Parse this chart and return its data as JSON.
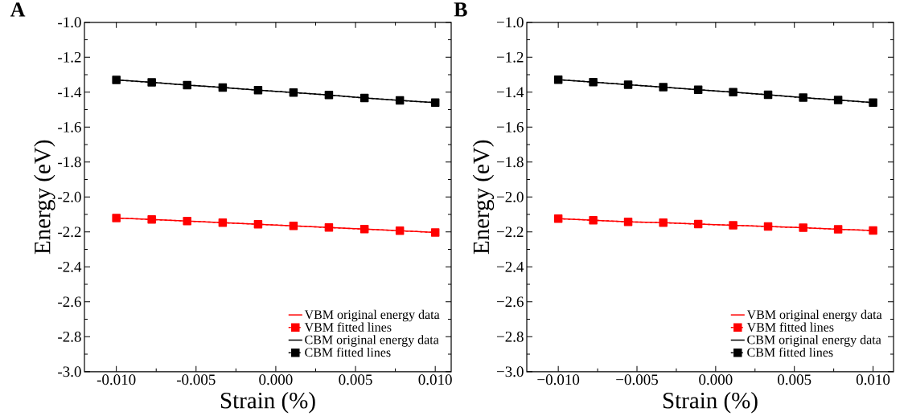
{
  "chart_data": [
    {
      "type": "line",
      "title": "A",
      "xlabel": "Strain (%)",
      "ylabel": "Energy (eV)",
      "legend": "bottom right",
      "x": [
        -0.01,
        -0.00778,
        -0.00556,
        -0.00333,
        -0.00111,
        0.00111,
        0.00333,
        0.00556,
        0.00778,
        0.01
      ],
      "series": [
        {
          "name": "VBM fitted lines",
          "color": "#ff0000",
          "line_style": "dashed",
          "marker": "square",
          "values": [
            -2.12,
            -2.129,
            -2.138,
            -2.147,
            -2.156,
            -2.165,
            -2.175,
            -2.184,
            -2.193,
            -2.203
          ]
        },
        {
          "name": "VBM original energy data",
          "color": "#ff0000",
          "line_style": "solid",
          "marker": "none",
          "values": [
            -2.12,
            -2.129,
            -2.138,
            -2.147,
            -2.156,
            -2.165,
            -2.175,
            -2.184,
            -2.193,
            -2.203
          ]
        },
        {
          "name": "CBM fitted lines",
          "color": "#000000",
          "line_style": "dashed",
          "marker": "square",
          "values": [
            -1.33,
            -1.344,
            -1.359,
            -1.373,
            -1.388,
            -1.402,
            -1.416,
            -1.433,
            -1.447,
            -1.46
          ]
        },
        {
          "name": "CBM original energy data",
          "color": "#000000",
          "line_style": "solid",
          "marker": "none",
          "values": [
            -1.33,
            -1.344,
            -1.359,
            -1.373,
            -1.388,
            -1.402,
            -1.416,
            -1.433,
            -1.447,
            -1.46
          ]
        }
      ],
      "xlim": [
        -0.012,
        0.011
      ],
      "ylim": [
        -3.0,
        -1.0
      ],
      "xticks": [
        {
          "value": -0.01,
          "label": "-0.010"
        },
        {
          "value": -0.005,
          "label": "-0.005"
        },
        {
          "value": 0,
          "label": "0.000"
        },
        {
          "value": 0.005,
          "label": "0.005"
        },
        {
          "value": 0.01,
          "label": "0.010"
        }
      ],
      "yticks": [
        {
          "value": -3.0,
          "label": "-3.0"
        },
        {
          "value": -2.8,
          "label": "-2.8"
        },
        {
          "value": -2.6,
          "label": "-2.6"
        },
        {
          "value": -2.4,
          "label": "-2.4"
        },
        {
          "value": -2.2,
          "label": "-2.2"
        },
        {
          "value": -2.0,
          "label": "-2.0"
        },
        {
          "value": -1.8,
          "label": "-1.8"
        },
        {
          "value": -1.6,
          "label": "-1.6"
        },
        {
          "value": -1.4,
          "label": "-1.4"
        },
        {
          "value": -1.2,
          "label": "-1.2"
        },
        {
          "value": -1.0,
          "label": "-1.0"
        }
      ]
    },
    {
      "type": "line",
      "title": "B",
      "xlabel": "Strain (%)",
      "ylabel": "Energy (eV)",
      "legend": "bottom right",
      "x": [
        -0.01,
        -0.00778,
        -0.00556,
        -0.00333,
        -0.00111,
        0.00111,
        0.00333,
        0.00556,
        0.00778,
        0.01
      ],
      "series": [
        {
          "name": "VBM fitted lines",
          "color": "#ff0000",
          "line_style": "dashed",
          "marker": "square",
          "values": [
            -2.124,
            -2.133,
            -2.142,
            -2.147,
            -2.155,
            -2.162,
            -2.169,
            -2.176,
            -2.185,
            -2.192
          ]
        },
        {
          "name": "VBM original energy data",
          "color": "#ff0000",
          "line_style": "solid",
          "marker": "none",
          "values": [
            -2.124,
            -2.133,
            -2.142,
            -2.147,
            -2.155,
            -2.162,
            -2.169,
            -2.176,
            -2.185,
            -2.192
          ]
        },
        {
          "name": "CBM fitted lines",
          "color": "#000000",
          "line_style": "dashed",
          "marker": "square",
          "values": [
            -1.328,
            -1.342,
            -1.357,
            -1.371,
            -1.386,
            -1.4,
            -1.415,
            -1.431,
            -1.445,
            -1.46
          ]
        },
        {
          "name": "CBM original energy data",
          "color": "#000000",
          "line_style": "solid",
          "marker": "none",
          "values": [
            -1.328,
            -1.342,
            -1.357,
            -1.371,
            -1.386,
            -1.4,
            -1.415,
            -1.431,
            -1.445,
            -1.46
          ]
        }
      ],
      "xlim": [
        -0.012,
        0.0113
      ],
      "ylim": [
        -3.0,
        -1.0
      ],
      "xticks": [
        {
          "value": -0.01,
          "label": "−0.010"
        },
        {
          "value": -0.005,
          "label": "−0.005"
        },
        {
          "value": 0,
          "label": "0.000"
        },
        {
          "value": 0.005,
          "label": "0.005"
        },
        {
          "value": 0.01,
          "label": "0.010"
        }
      ],
      "yticks": [
        {
          "value": -3.0,
          "label": "−3.0"
        },
        {
          "value": -2.8,
          "label": "−2.8"
        },
        {
          "value": -2.6,
          "label": "−2.6"
        },
        {
          "value": -2.4,
          "label": "−2.4"
        },
        {
          "value": -2.2,
          "label": "−2.2"
        },
        {
          "value": -2.0,
          "label": "−2.0"
        },
        {
          "value": -1.8,
          "label": "−1.8"
        },
        {
          "value": -1.6,
          "label": "−1.6"
        },
        {
          "value": -1.4,
          "label": "−1.4"
        },
        {
          "value": -1.2,
          "label": "−1.2"
        },
        {
          "value": -1.0,
          "label": "−1.0"
        }
      ]
    }
  ]
}
